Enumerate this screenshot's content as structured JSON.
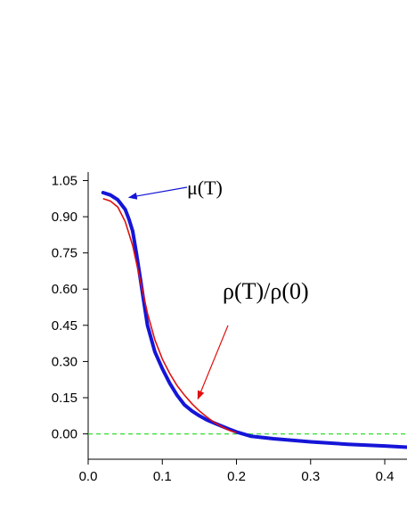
{
  "chart_data": {
    "type": "line",
    "title": "",
    "xlabel": "",
    "ylabel": "",
    "xlim": [
      0.0,
      0.43
    ],
    "ylim": [
      -0.105,
      1.085
    ],
    "x_ticks": [
      0.0,
      0.1,
      0.2,
      0.3,
      0.4
    ],
    "x_tick_labels": [
      "0.0",
      "0.1",
      "0.2",
      "0.3",
      "0.4"
    ],
    "y_ticks": [
      1.05,
      0.9,
      0.75,
      0.6,
      0.45,
      0.3,
      0.15,
      0.0
    ],
    "y_tick_labels": [
      "1.05",
      "0.90",
      "0.75",
      "0.60",
      "0.45",
      "0.30",
      "0.15",
      "0.00"
    ],
    "grid": false,
    "legend": "none",
    "series": [
      {
        "name": "μ(T)",
        "color": "#1515d8",
        "style": "noisy-data",
        "x": [
          0.02,
          0.03,
          0.04,
          0.05,
          0.055,
          0.06,
          0.065,
          0.07,
          0.075,
          0.08,
          0.09,
          0.1,
          0.11,
          0.12,
          0.13,
          0.14,
          0.15,
          0.16,
          0.17,
          0.18,
          0.19,
          0.2,
          0.22,
          0.25,
          0.3,
          0.35,
          0.4,
          0.43
        ],
        "y": [
          1.0,
          0.99,
          0.97,
          0.93,
          0.89,
          0.84,
          0.75,
          0.65,
          0.55,
          0.45,
          0.34,
          0.27,
          0.21,
          0.16,
          0.12,
          0.095,
          0.075,
          0.058,
          0.045,
          0.032,
          0.02,
          0.008,
          -0.01,
          -0.02,
          -0.033,
          -0.043,
          -0.05,
          -0.055
        ]
      },
      {
        "name": "ρ(T)/ρ(0)",
        "color": "#e01010",
        "style": "smooth",
        "x": [
          0.02,
          0.03,
          0.04,
          0.05,
          0.06,
          0.07,
          0.08,
          0.09,
          0.1,
          0.11,
          0.12,
          0.13,
          0.14,
          0.15,
          0.16,
          0.17,
          0.18,
          0.19,
          0.2
        ],
        "y": [
          0.975,
          0.965,
          0.94,
          0.88,
          0.78,
          0.64,
          0.5,
          0.39,
          0.31,
          0.25,
          0.2,
          0.16,
          0.125,
          0.095,
          0.07,
          0.048,
          0.03,
          0.015,
          0.005
        ]
      }
    ],
    "reference_line": {
      "y": 0.0,
      "color": "#33dd33",
      "style": "dashed"
    },
    "annotations": [
      {
        "text": "μ(T)",
        "arrow_to": [
          0.055,
          0.98
        ]
      },
      {
        "text": "ρ(T)/ρ(0)",
        "arrow_to": [
          0.148,
          0.145
        ]
      }
    ]
  }
}
